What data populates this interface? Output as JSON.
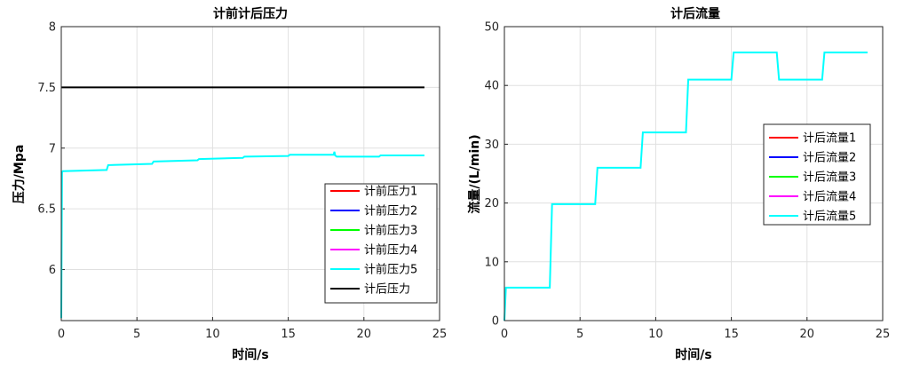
{
  "chart_data": [
    {
      "id": "left",
      "type": "line",
      "title": "计前计后压力",
      "xlabel": "时间/s",
      "ylabel": "压力/Mpa",
      "xlim": [
        0,
        25
      ],
      "ylim": [
        5.58,
        8
      ],
      "xticks": [
        0,
        5,
        10,
        15,
        20,
        25
      ],
      "yticks": [
        6,
        6.5,
        7,
        7.5,
        8
      ],
      "grid": true,
      "legend_position": "lower-right",
      "series": [
        {
          "name": "计前压力1",
          "color": "#ff0000",
          "x": [],
          "y": []
        },
        {
          "name": "计前压力2",
          "color": "#0000ff",
          "x": [],
          "y": []
        },
        {
          "name": "计前压力3",
          "color": "#00ff00",
          "x": [],
          "y": []
        },
        {
          "name": "计前压力4",
          "color": "#ff00ff",
          "x": [],
          "y": []
        },
        {
          "name": "计前压力5",
          "color": "#00ffff",
          "x": [
            0,
            0.05,
            0.1,
            3.0,
            3.1,
            6.0,
            6.1,
            9.0,
            9.1,
            12.0,
            12.1,
            15.0,
            15.1,
            18.0,
            18.05,
            18.1,
            18.2,
            21.0,
            21.1,
            24.0
          ],
          "y": [
            5.6,
            6.8,
            6.81,
            6.82,
            6.86,
            6.87,
            6.89,
            6.9,
            6.91,
            6.92,
            6.93,
            6.935,
            6.945,
            6.945,
            6.97,
            6.94,
            6.93,
            6.93,
            6.94,
            6.94
          ]
        },
        {
          "name": "计后压力",
          "color": "#000000",
          "x": [
            0,
            24
          ],
          "y": [
            7.5,
            7.5
          ]
        }
      ]
    },
    {
      "id": "right",
      "type": "line",
      "title": "计后流量",
      "xlabel": "时间/s",
      "ylabel": "流量/(L/min)",
      "xlim": [
        0,
        25
      ],
      "ylim": [
        0,
        50
      ],
      "xticks": [
        0,
        5,
        10,
        15,
        20,
        25
      ],
      "yticks": [
        0,
        10,
        20,
        30,
        40,
        50
      ],
      "grid": true,
      "legend_position": "right-middle",
      "series": [
        {
          "name": "计后流量1",
          "color": "#ff0000",
          "x": [],
          "y": []
        },
        {
          "name": "计后流量2",
          "color": "#0000ff",
          "x": [],
          "y": []
        },
        {
          "name": "计后流量3",
          "color": "#00ff00",
          "x": [],
          "y": []
        },
        {
          "name": "计后流量4",
          "color": "#ff00ff",
          "x": [],
          "y": []
        },
        {
          "name": "计后流量5",
          "color": "#00ffff",
          "x": [
            0,
            0.1,
            3.0,
            3.15,
            6.0,
            6.15,
            9.0,
            9.15,
            12.0,
            12.15,
            15.0,
            15.15,
            18.0,
            18.15,
            21.0,
            21.15,
            24.0
          ],
          "y": [
            0,
            5.6,
            5.6,
            19.8,
            19.8,
            26.0,
            26.0,
            32.0,
            32.0,
            41.0,
            41.0,
            45.6,
            45.6,
            41.0,
            41.0,
            45.6,
            45.6
          ]
        }
      ]
    }
  ]
}
